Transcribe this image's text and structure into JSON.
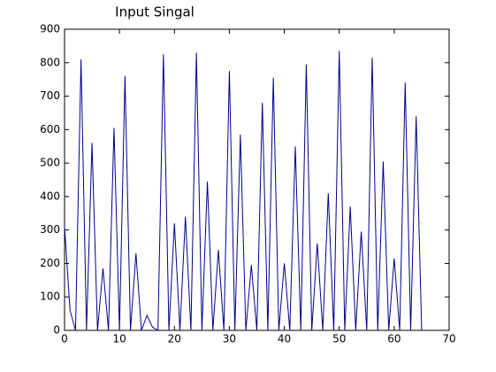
{
  "chart_data": {
    "type": "line",
    "title": "Input Singal",
    "x": [
      0,
      1,
      2,
      3,
      4,
      5,
      6,
      7,
      8,
      9,
      10,
      11,
      12,
      13,
      14,
      15,
      16,
      17,
      18,
      19,
      20,
      21,
      22,
      23,
      24,
      25,
      26,
      27,
      28,
      29,
      30,
      31,
      32,
      33,
      34,
      35,
      36,
      37,
      38,
      39,
      40,
      41,
      42,
      43,
      44,
      45,
      46,
      47,
      48,
      49,
      50,
      51,
      52,
      53,
      54,
      55,
      56,
      57,
      58,
      59,
      60,
      61,
      62,
      63,
      64,
      65
    ],
    "series": [
      {
        "color": "#00008b",
        "values": [
          310,
          60,
          0,
          810,
          0,
          560,
          0,
          185,
          0,
          605,
          0,
          760,
          0,
          230,
          0,
          45,
          10,
          0,
          825,
          0,
          320,
          0,
          340,
          0,
          830,
          0,
          445,
          0,
          240,
          0,
          775,
          0,
          585,
          0,
          195,
          0,
          680,
          0,
          755,
          0,
          200,
          0,
          550,
          0,
          795,
          0,
          260,
          0,
          410,
          0,
          835,
          0,
          370,
          0,
          295,
          0,
          815,
          0,
          505,
          0,
          215,
          0,
          740,
          0,
          640,
          0
        ]
      }
    ],
    "xlim": [
      0,
      70
    ],
    "xticks": [
      0,
      10,
      20,
      30,
      40,
      50,
      60,
      70
    ],
    "ylim": [
      0,
      900
    ],
    "yticks": [
      0,
      100,
      200,
      300,
      400,
      500,
      600,
      700,
      800,
      900
    ],
    "grid": false
  }
}
